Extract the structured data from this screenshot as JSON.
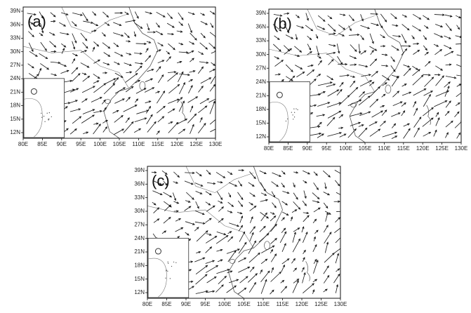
{
  "panels": [
    {
      "label": "(a)",
      "x_labels": [
        "80E",
        "85E",
        "90E",
        "95E",
        "100E",
        "105E",
        "110E",
        "115E",
        "120E",
        "125E",
        "130E"
      ],
      "y_labels": [
        "39N",
        "36N",
        "33N",
        "30N",
        "27N",
        "24N",
        "21N",
        "18N",
        "15N",
        "12N"
      ]
    },
    {
      "label": "(b)",
      "x_labels": [
        "80E",
        "85E",
        "90E",
        "95E",
        "100E",
        "105E",
        "110E",
        "115E",
        "120E",
        "125E",
        "130E"
      ],
      "y_labels": [
        "39N",
        "36N",
        "33N",
        "30N",
        "27N",
        "24N",
        "21N",
        "18N",
        "15N",
        "12N"
      ]
    },
    {
      "label": "(c)",
      "x_labels": [
        "80E",
        "85E",
        "90E",
        "95E",
        "100E",
        "105E",
        "110E",
        "115E",
        "120E",
        "125E",
        "130E"
      ],
      "y_labels": [
        "39N",
        "36N",
        "33N",
        "30N",
        "27N",
        "24N",
        "21N",
        "18N",
        "15N",
        "12N"
      ]
    }
  ]
}
